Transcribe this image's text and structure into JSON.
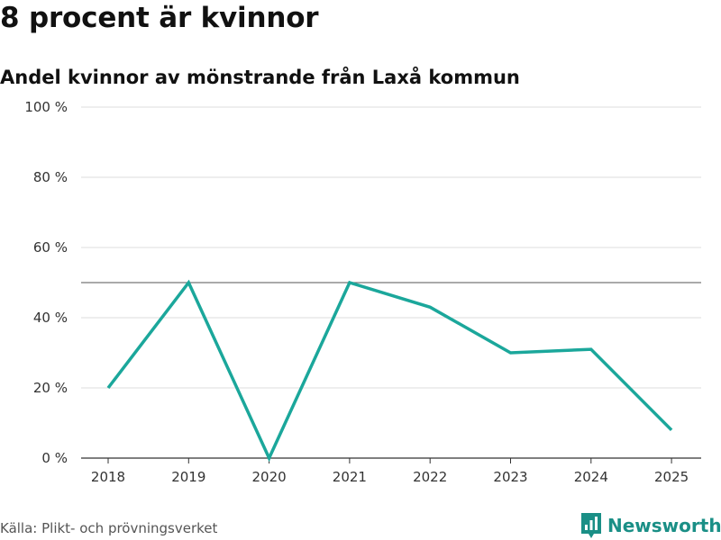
{
  "header": {
    "title": "8 procent är kvinnor",
    "subtitle": "Andel kvinnor av mönstrande från Laxå kommun"
  },
  "footer": {
    "source": "Källa: Plikt- och prövningsverket",
    "brand": "Newsworthy"
  },
  "colors": {
    "line": "#1ba79b",
    "brand": "#1a8f86",
    "grid": "#dddddd",
    "reference": "#777777"
  },
  "chart_data": {
    "type": "line",
    "title": "8 procent är kvinnor",
    "subtitle": "Andel kvinnor av mönstrande från Laxå kommun",
    "xlabel": "",
    "ylabel": "",
    "categories": [
      "2018",
      "2019",
      "2020",
      "2021",
      "2022",
      "2023",
      "2024",
      "2025"
    ],
    "series": [
      {
        "name": "Andel kvinnor",
        "values": [
          20,
          50,
          0,
          50,
          43,
          30,
          31,
          8
        ]
      }
    ],
    "ylim": [
      0,
      100
    ],
    "yticks": [
      0,
      20,
      40,
      60,
      80,
      100
    ],
    "ytick_labels": [
      "0 %",
      "20 %",
      "40 %",
      "60 %",
      "80 %",
      "100 %"
    ],
    "reference_line": 50,
    "grid": true
  }
}
